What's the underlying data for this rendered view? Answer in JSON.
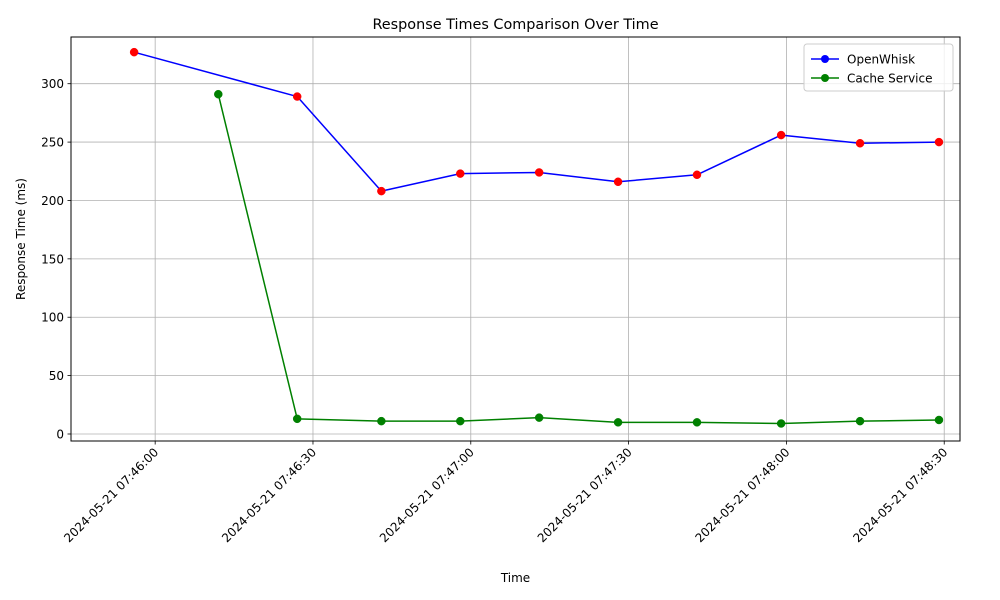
{
  "chart_data": {
    "type": "line",
    "title": "Response Times Comparison Over Time",
    "xlabel": "Time",
    "ylabel": "Response Time (ms)",
    "x_type": "datetime",
    "xlim": [
      "2024-05-21 07:45:44",
      "2024-05-21 07:48:33"
    ],
    "ylim": [
      -6,
      340
    ],
    "x_ticks": [
      "2024-05-21 07:46:00",
      "2024-05-21 07:46:30",
      "2024-05-21 07:47:00",
      "2024-05-21 07:47:30",
      "2024-05-21 07:48:00",
      "2024-05-21 07:48:30"
    ],
    "y_ticks": [
      0,
      50,
      100,
      150,
      200,
      250,
      300
    ],
    "grid": true,
    "legend_position": "top-right",
    "series": [
      {
        "name": "OpenWhisk",
        "color": "#0000ff",
        "marker_color": "#ff0000",
        "x": [
          "2024-05-21 07:45:56",
          "2024-05-21 07:46:27",
          "2024-05-21 07:46:43",
          "2024-05-21 07:46:58",
          "2024-05-21 07:47:13",
          "2024-05-21 07:47:28",
          "2024-05-21 07:47:43",
          "2024-05-21 07:47:59",
          "2024-05-21 07:48:14",
          "2024-05-21 07:48:29"
        ],
        "values": [
          327,
          289,
          208,
          223,
          224,
          216,
          222,
          256,
          249,
          250
        ]
      },
      {
        "name": "Cache Service",
        "color": "#008000",
        "marker_color": "#008000",
        "x": [
          "2024-05-21 07:46:12",
          "2024-05-21 07:46:27",
          "2024-05-21 07:46:43",
          "2024-05-21 07:46:58",
          "2024-05-21 07:47:13",
          "2024-05-21 07:47:28",
          "2024-05-21 07:47:43",
          "2024-05-21 07:47:59",
          "2024-05-21 07:48:14",
          "2024-05-21 07:48:29"
        ],
        "values": [
          291,
          13,
          11,
          11,
          14,
          10,
          10,
          9,
          11,
          12
        ]
      }
    ],
    "legend_marker_color": {
      "OpenWhisk": "#0000ff",
      "Cache Service": "#008000"
    }
  }
}
